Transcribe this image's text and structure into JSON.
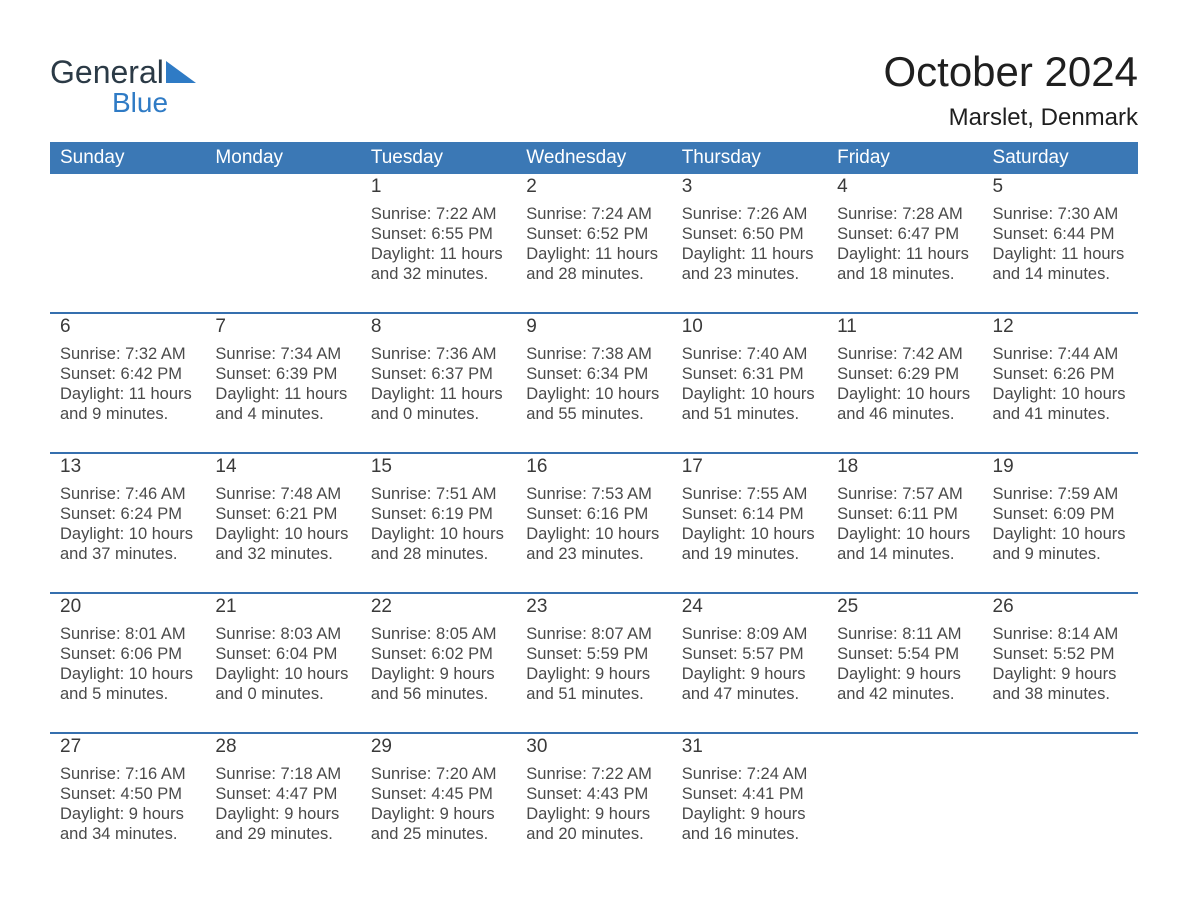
{
  "logo": {
    "line1": "General",
    "line2": "Blue"
  },
  "title": "October 2024",
  "location": "Marslet, Denmark",
  "colors": {
    "header_blue": "#3b78b5",
    "accent_blue": "#2a70c2",
    "row_band": "#eceded",
    "divider_blue": "#356fae",
    "logo_dark": "#2b3a46",
    "logo_blue": "#2f7bc5",
    "background": "#ffffff"
  },
  "weekdays": [
    "Sunday",
    "Monday",
    "Tuesday",
    "Wednesday",
    "Thursday",
    "Friday",
    "Saturday"
  ],
  "weeks": [
    [
      null,
      null,
      {
        "day": "1",
        "sunrise": "7:22 AM",
        "sunset": "6:55 PM",
        "daylight": "11 hours and 32 minutes."
      },
      {
        "day": "2",
        "sunrise": "7:24 AM",
        "sunset": "6:52 PM",
        "daylight": "11 hours and 28 minutes."
      },
      {
        "day": "3",
        "sunrise": "7:26 AM",
        "sunset": "6:50 PM",
        "daylight": "11 hours and 23 minutes."
      },
      {
        "day": "4",
        "sunrise": "7:28 AM",
        "sunset": "6:47 PM",
        "daylight": "11 hours and 18 minutes."
      },
      {
        "day": "5",
        "sunrise": "7:30 AM",
        "sunset": "6:44 PM",
        "daylight": "11 hours and 14 minutes."
      }
    ],
    [
      {
        "day": "6",
        "sunrise": "7:32 AM",
        "sunset": "6:42 PM",
        "daylight": "11 hours and 9 minutes."
      },
      {
        "day": "7",
        "sunrise": "7:34 AM",
        "sunset": "6:39 PM",
        "daylight": "11 hours and 4 minutes."
      },
      {
        "day": "8",
        "sunrise": "7:36 AM",
        "sunset": "6:37 PM",
        "daylight": "11 hours and 0 minutes."
      },
      {
        "day": "9",
        "sunrise": "7:38 AM",
        "sunset": "6:34 PM",
        "daylight": "10 hours and 55 minutes."
      },
      {
        "day": "10",
        "sunrise": "7:40 AM",
        "sunset": "6:31 PM",
        "daylight": "10 hours and 51 minutes."
      },
      {
        "day": "11",
        "sunrise": "7:42 AM",
        "sunset": "6:29 PM",
        "daylight": "10 hours and 46 minutes."
      },
      {
        "day": "12",
        "sunrise": "7:44 AM",
        "sunset": "6:26 PM",
        "daylight": "10 hours and 41 minutes."
      }
    ],
    [
      {
        "day": "13",
        "sunrise": "7:46 AM",
        "sunset": "6:24 PM",
        "daylight": "10 hours and 37 minutes."
      },
      {
        "day": "14",
        "sunrise": "7:48 AM",
        "sunset": "6:21 PM",
        "daylight": "10 hours and 32 minutes."
      },
      {
        "day": "15",
        "sunrise": "7:51 AM",
        "sunset": "6:19 PM",
        "daylight": "10 hours and 28 minutes."
      },
      {
        "day": "16",
        "sunrise": "7:53 AM",
        "sunset": "6:16 PM",
        "daylight": "10 hours and 23 minutes."
      },
      {
        "day": "17",
        "sunrise": "7:55 AM",
        "sunset": "6:14 PM",
        "daylight": "10 hours and 19 minutes."
      },
      {
        "day": "18",
        "sunrise": "7:57 AM",
        "sunset": "6:11 PM",
        "daylight": "10 hours and 14 minutes."
      },
      {
        "day": "19",
        "sunrise": "7:59 AM",
        "sunset": "6:09 PM",
        "daylight": "10 hours and 9 minutes."
      }
    ],
    [
      {
        "day": "20",
        "sunrise": "8:01 AM",
        "sunset": "6:06 PM",
        "daylight": "10 hours and 5 minutes."
      },
      {
        "day": "21",
        "sunrise": "8:03 AM",
        "sunset": "6:04 PM",
        "daylight": "10 hours and 0 minutes."
      },
      {
        "day": "22",
        "sunrise": "8:05 AM",
        "sunset": "6:02 PM",
        "daylight": "9 hours and 56 minutes."
      },
      {
        "day": "23",
        "sunrise": "8:07 AM",
        "sunset": "5:59 PM",
        "daylight": "9 hours and 51 minutes."
      },
      {
        "day": "24",
        "sunrise": "8:09 AM",
        "sunset": "5:57 PM",
        "daylight": "9 hours and 47 minutes."
      },
      {
        "day": "25",
        "sunrise": "8:11 AM",
        "sunset": "5:54 PM",
        "daylight": "9 hours and 42 minutes."
      },
      {
        "day": "26",
        "sunrise": "8:14 AM",
        "sunset": "5:52 PM",
        "daylight": "9 hours and 38 minutes."
      }
    ],
    [
      {
        "day": "27",
        "sunrise": "7:16 AM",
        "sunset": "4:50 PM",
        "daylight": "9 hours and 34 minutes."
      },
      {
        "day": "28",
        "sunrise": "7:18 AM",
        "sunset": "4:47 PM",
        "daylight": "9 hours and 29 minutes."
      },
      {
        "day": "29",
        "sunrise": "7:20 AM",
        "sunset": "4:45 PM",
        "daylight": "9 hours and 25 minutes."
      },
      {
        "day": "30",
        "sunrise": "7:22 AM",
        "sunset": "4:43 PM",
        "daylight": "9 hours and 20 minutes."
      },
      {
        "day": "31",
        "sunrise": "7:24 AM",
        "sunset": "4:41 PM",
        "daylight": "9 hours and 16 minutes."
      },
      null,
      null
    ]
  ],
  "labels": {
    "sunrise": "Sunrise: ",
    "sunset": "Sunset: ",
    "daylight": "Daylight: "
  }
}
